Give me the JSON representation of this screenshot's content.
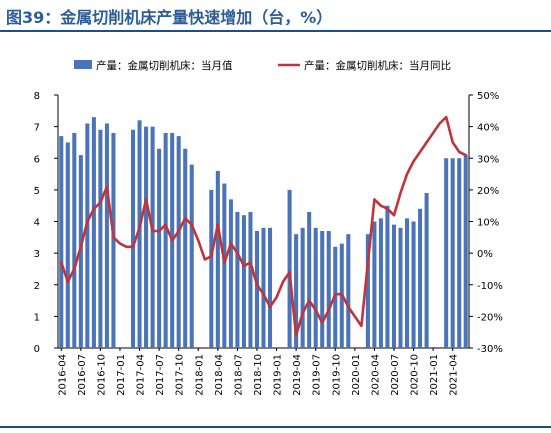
{
  "header": {
    "title": "图39：金属切削机床产量快速增加（台，%）"
  },
  "colors": {
    "bar": "#4a73b8",
    "line": "#c0343c",
    "rule": "#1f4e8c",
    "title": "#2c5d96"
  },
  "chart_data": {
    "type": "bar",
    "title": "",
    "xlabel": "",
    "ylabel_left": "",
    "ylabel_right": "",
    "left_ylim": [
      0,
      8
    ],
    "left_ticks": [
      "0",
      "1",
      "2",
      "3",
      "4",
      "5",
      "6",
      "7",
      "8"
    ],
    "right_ylim": [
      -30,
      50
    ],
    "right_ticks": [
      "-30%",
      "-20%",
      "-10%",
      "0%",
      "10%",
      "20%",
      "30%",
      "40%",
      "50%"
    ],
    "legend": {
      "placement": "top",
      "bar_label": "产量：金属切削机床：当月值",
      "line_label": "产量：金属切削机床：当月同比"
    },
    "x_tick_labels": [
      "2016-04",
      "2016-07",
      "2016-10",
      "2017-01",
      "2017-04",
      "2017-07",
      "2017-10",
      "2018-01",
      "2018-04",
      "2018-07",
      "2018-10",
      "2019-01",
      "2019-04",
      "2019-07",
      "2019-10",
      "2020-01",
      "2020-04",
      "2020-07",
      "2020-10",
      "2021-01",
      "2021-04"
    ],
    "x": [
      "2016-04",
      "2016-05",
      "2016-06",
      "2016-07",
      "2016-08",
      "2016-09",
      "2016-10",
      "2016-11",
      "2016-12",
      "2017-01",
      "2017-02",
      "2017-03",
      "2017-04",
      "2017-05",
      "2017-06",
      "2017-07",
      "2017-08",
      "2017-09",
      "2017-10",
      "2017-11",
      "2017-12",
      "2018-01",
      "2018-02",
      "2018-03",
      "2018-04",
      "2018-05",
      "2018-06",
      "2018-07",
      "2018-08",
      "2018-09",
      "2018-10",
      "2018-11",
      "2018-12",
      "2019-01",
      "2019-02",
      "2019-03",
      "2019-04",
      "2019-05",
      "2019-06",
      "2019-07",
      "2019-08",
      "2019-09",
      "2019-10",
      "2019-11",
      "2019-12",
      "2020-01",
      "2020-02",
      "2020-03",
      "2020-04",
      "2020-05",
      "2020-06",
      "2020-07",
      "2020-08",
      "2020-09",
      "2020-10",
      "2020-11",
      "2020-12",
      "2021-01",
      "2021-02",
      "2021-03",
      "2021-04",
      "2021-05",
      "2021-06"
    ],
    "series": [
      {
        "name": "产量：金属切削机床：当月值",
        "type": "bar",
        "axis": "left",
        "values": [
          6.7,
          6.5,
          6.8,
          6.1,
          7.1,
          7.3,
          6.9,
          7.1,
          6.8,
          null,
          null,
          6.9,
          7.2,
          7.0,
          7.0,
          6.3,
          6.8,
          6.8,
          6.7,
          6.3,
          5.8,
          null,
          null,
          5.0,
          5.6,
          5.2,
          4.7,
          4.3,
          4.2,
          4.3,
          3.7,
          3.8,
          3.8,
          null,
          null,
          5.0,
          3.6,
          3.8,
          4.3,
          3.8,
          3.7,
          3.7,
          3.2,
          3.3,
          3.6,
          null,
          null,
          3.6,
          4.0,
          4.1,
          4.5,
          3.9,
          3.8,
          4.1,
          4.0,
          4.4,
          4.9,
          null,
          null,
          6.0,
          6.0,
          6.0,
          6.1
        ]
      },
      {
        "name": "产量：金属切削机床：当月同比",
        "type": "line",
        "axis": "right",
        "values": [
          -3,
          -9,
          -5,
          2,
          10,
          14,
          16,
          21,
          5,
          3,
          2,
          2,
          8,
          17,
          7,
          7,
          9,
          4,
          7,
          11,
          9,
          4,
          -2,
          -1,
          9,
          -3,
          3,
          0,
          -4,
          -3,
          -10,
          -13,
          -17,
          -14,
          -9,
          -6,
          -26,
          -19,
          -15,
          -18,
          -22,
          -18,
          -13,
          -13,
          -17,
          -20,
          -23,
          -3,
          17,
          15,
          14,
          12,
          19,
          25,
          29,
          32,
          35,
          38,
          41,
          43,
          35,
          32,
          31
        ]
      }
    ]
  }
}
